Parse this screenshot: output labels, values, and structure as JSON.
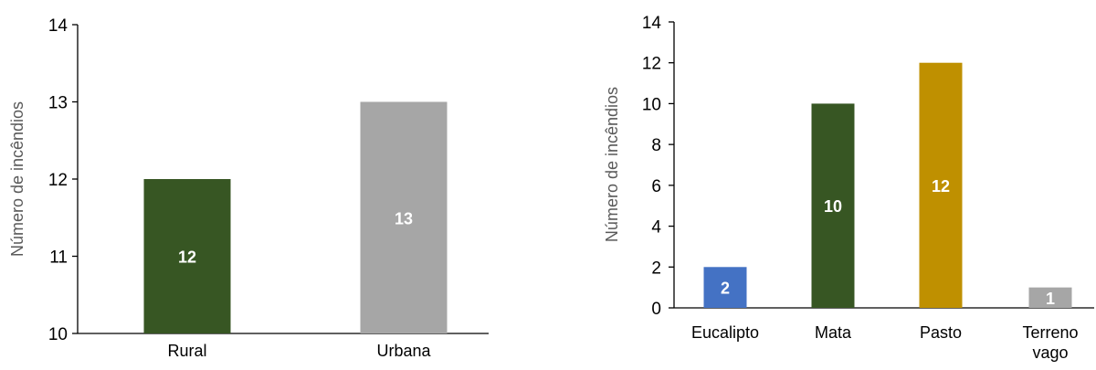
{
  "chart_data": [
    {
      "type": "bar",
      "ylabel": "Número de incêndios",
      "ylim": [
        10,
        14
      ],
      "yticks": [
        "10",
        "11",
        "12",
        "13",
        "14"
      ],
      "categories": [
        "Rural",
        "Urbana"
      ],
      "values": [
        12,
        13
      ],
      "data_labels": [
        "12",
        "13"
      ],
      "colors": [
        "#375623",
        "#a6a6a6"
      ],
      "grid": false
    },
    {
      "type": "bar",
      "ylabel": "Número de incêndios",
      "ylim": [
        0,
        14
      ],
      "yticks": [
        "0",
        "2",
        "4",
        "6",
        "8",
        "10",
        "12",
        "14"
      ],
      "categories": [
        "Eucalipto",
        "Mata",
        "Pasto",
        "Terreno vago"
      ],
      "category_lines": [
        [
          "Eucalipto"
        ],
        [
          "Mata"
        ],
        [
          "Pasto"
        ],
        [
          "Terreno",
          "vago"
        ]
      ],
      "values": [
        2,
        10,
        12,
        1
      ],
      "data_labels": [
        "2",
        "10",
        "12",
        "1"
      ],
      "colors": [
        "#4472c4",
        "#375623",
        "#bf9000",
        "#a6a6a6"
      ],
      "grid": false
    }
  ]
}
